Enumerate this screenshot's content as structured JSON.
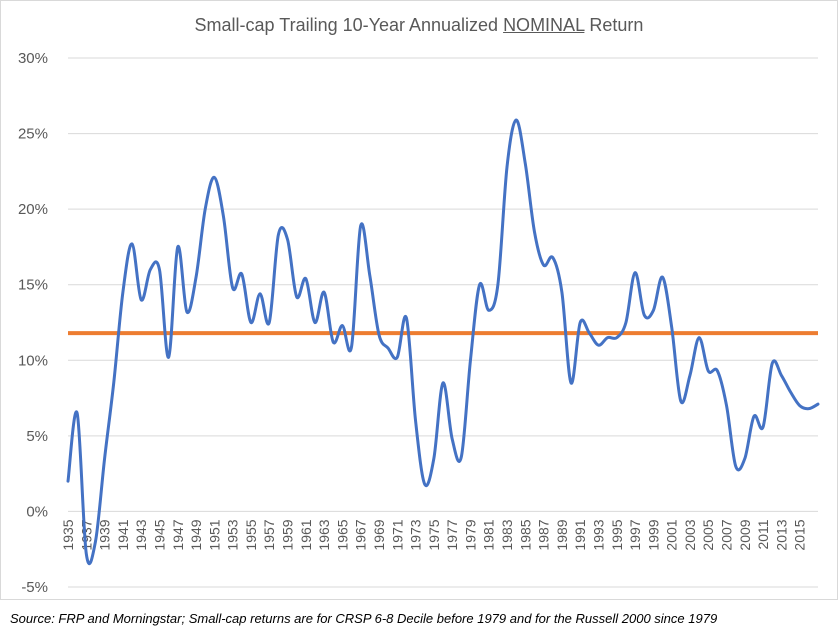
{
  "title": {
    "prefix": "Small-cap Trailing 10-Year Annualized ",
    "emphasis": "NOMINAL",
    "suffix": " Return"
  },
  "source_note": "Source: FRP and Morningstar; Small-cap returns are for CRSP 6-8 Decile before 1979 and for the Russell 2000 since 1979",
  "colors": {
    "series": "#4472c4",
    "average": "#ed7d31",
    "grid": "#d9d9d9",
    "text": "#595959"
  },
  "chart_data": {
    "type": "line",
    "title": "Small-cap Trailing 10-Year Annualized NOMINAL Return",
    "xlabel": "",
    "ylabel": "",
    "ylim": [
      -5,
      30
    ],
    "y_ticks": [
      "-5%",
      "0%",
      "5%",
      "10%",
      "15%",
      "20%",
      "25%",
      "30%"
    ],
    "y_tick_values": [
      -5,
      0,
      5,
      10,
      15,
      20,
      25,
      30
    ],
    "x_tick_labels": [
      "1935",
      "1937",
      "1939",
      "1941",
      "1943",
      "1945",
      "1947",
      "1949",
      "1951",
      "1953",
      "1955",
      "1957",
      "1959",
      "1961",
      "1963",
      "1965",
      "1967",
      "1969",
      "1971",
      "1973",
      "1975",
      "1977",
      "1979",
      "1981",
      "1983",
      "1985",
      "1987",
      "1989",
      "1991",
      "1993",
      "1995",
      "1997",
      "1999",
      "2001",
      "2003",
      "2005",
      "2007",
      "2009",
      "2011",
      "2013",
      "2015"
    ],
    "grid": true,
    "legend": "none",
    "x": [
      1935,
      1936,
      1937,
      1938,
      1939,
      1940,
      1941,
      1942,
      1943,
      1944,
      1945,
      1946,
      1947,
      1948,
      1949,
      1950,
      1951,
      1952,
      1953,
      1954,
      1955,
      1956,
      1957,
      1958,
      1959,
      1960,
      1961,
      1962,
      1963,
      1964,
      1965,
      1966,
      1967,
      1968,
      1969,
      1970,
      1971,
      1972,
      1973,
      1974,
      1975,
      1976,
      1977,
      1978,
      1979,
      1980,
      1981,
      1982,
      1983,
      1984,
      1985,
      1986,
      1987,
      1988,
      1989,
      1990,
      1991,
      1992,
      1993,
      1994,
      1995,
      1996,
      1997,
      1998,
      1999,
      2000,
      2001,
      2002,
      2003,
      2004,
      2005,
      2006,
      2007,
      2008,
      2009,
      2010,
      2011,
      2012,
      2013,
      2014,
      2015,
      2016,
      2017
    ],
    "series": [
      {
        "values": [
          2.0,
          6.5,
          -2.8,
          -2.0,
          3.5,
          8.5,
          14.5,
          17.7,
          14.0,
          16.0,
          16.0,
          10.2,
          17.5,
          13.2,
          15.5,
          20.0,
          22.1,
          19.5,
          14.8,
          15.7,
          12.5,
          14.4,
          12.5,
          18.3,
          18.0,
          14.2,
          15.4,
          12.5,
          14.5,
          11.2,
          12.3,
          10.9,
          18.9,
          15.6,
          11.7,
          10.8,
          10.2,
          12.8,
          6.0,
          1.8,
          3.5,
          8.5,
          4.8,
          3.6,
          10.0,
          15.0,
          13.3,
          15.0,
          22.8,
          25.9,
          23.0,
          18.5,
          16.3,
          16.8,
          14.5,
          8.5,
          12.5,
          11.8,
          11.0,
          11.5,
          11.5,
          12.5,
          15.8,
          13.0,
          13.3,
          15.5,
          12.2,
          7.3,
          9.0,
          11.5,
          9.3,
          9.3,
          7.0,
          3.0,
          3.5,
          6.3,
          5.6,
          9.8,
          9.0,
          7.9,
          7.0,
          6.8,
          7.1
        ]
      }
    ],
    "reference_lines": [
      {
        "value": 11.8
      }
    ]
  }
}
